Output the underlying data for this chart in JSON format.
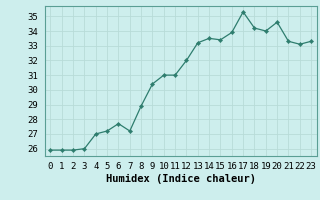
{
  "x": [
    0,
    1,
    2,
    3,
    4,
    5,
    6,
    7,
    8,
    9,
    10,
    11,
    12,
    13,
    14,
    15,
    16,
    17,
    18,
    19,
    20,
    21,
    22,
    23
  ],
  "y": [
    25.9,
    25.9,
    25.9,
    26.0,
    27.0,
    27.2,
    27.7,
    27.2,
    28.9,
    30.4,
    31.0,
    31.0,
    32.0,
    33.2,
    33.5,
    33.4,
    33.9,
    35.3,
    34.2,
    34.0,
    34.6,
    33.3,
    33.1,
    33.3
  ],
  "bg_color": "#cdeeed",
  "grid_color": "#b8dbd8",
  "line_color": "#2e7d6e",
  "marker_color": "#2e7d6e",
  "xlabel": "Humidex (Indice chaleur)",
  "ylim": [
    25.5,
    35.7
  ],
  "xlim": [
    -0.5,
    23.5
  ],
  "yticks": [
    26,
    27,
    28,
    29,
    30,
    31,
    32,
    33,
    34,
    35
  ],
  "xticks": [
    0,
    1,
    2,
    3,
    4,
    5,
    6,
    7,
    8,
    9,
    10,
    11,
    12,
    13,
    14,
    15,
    16,
    17,
    18,
    19,
    20,
    21,
    22,
    23
  ],
  "tick_fontsize": 6.5,
  "xlabel_fontsize": 7.5
}
